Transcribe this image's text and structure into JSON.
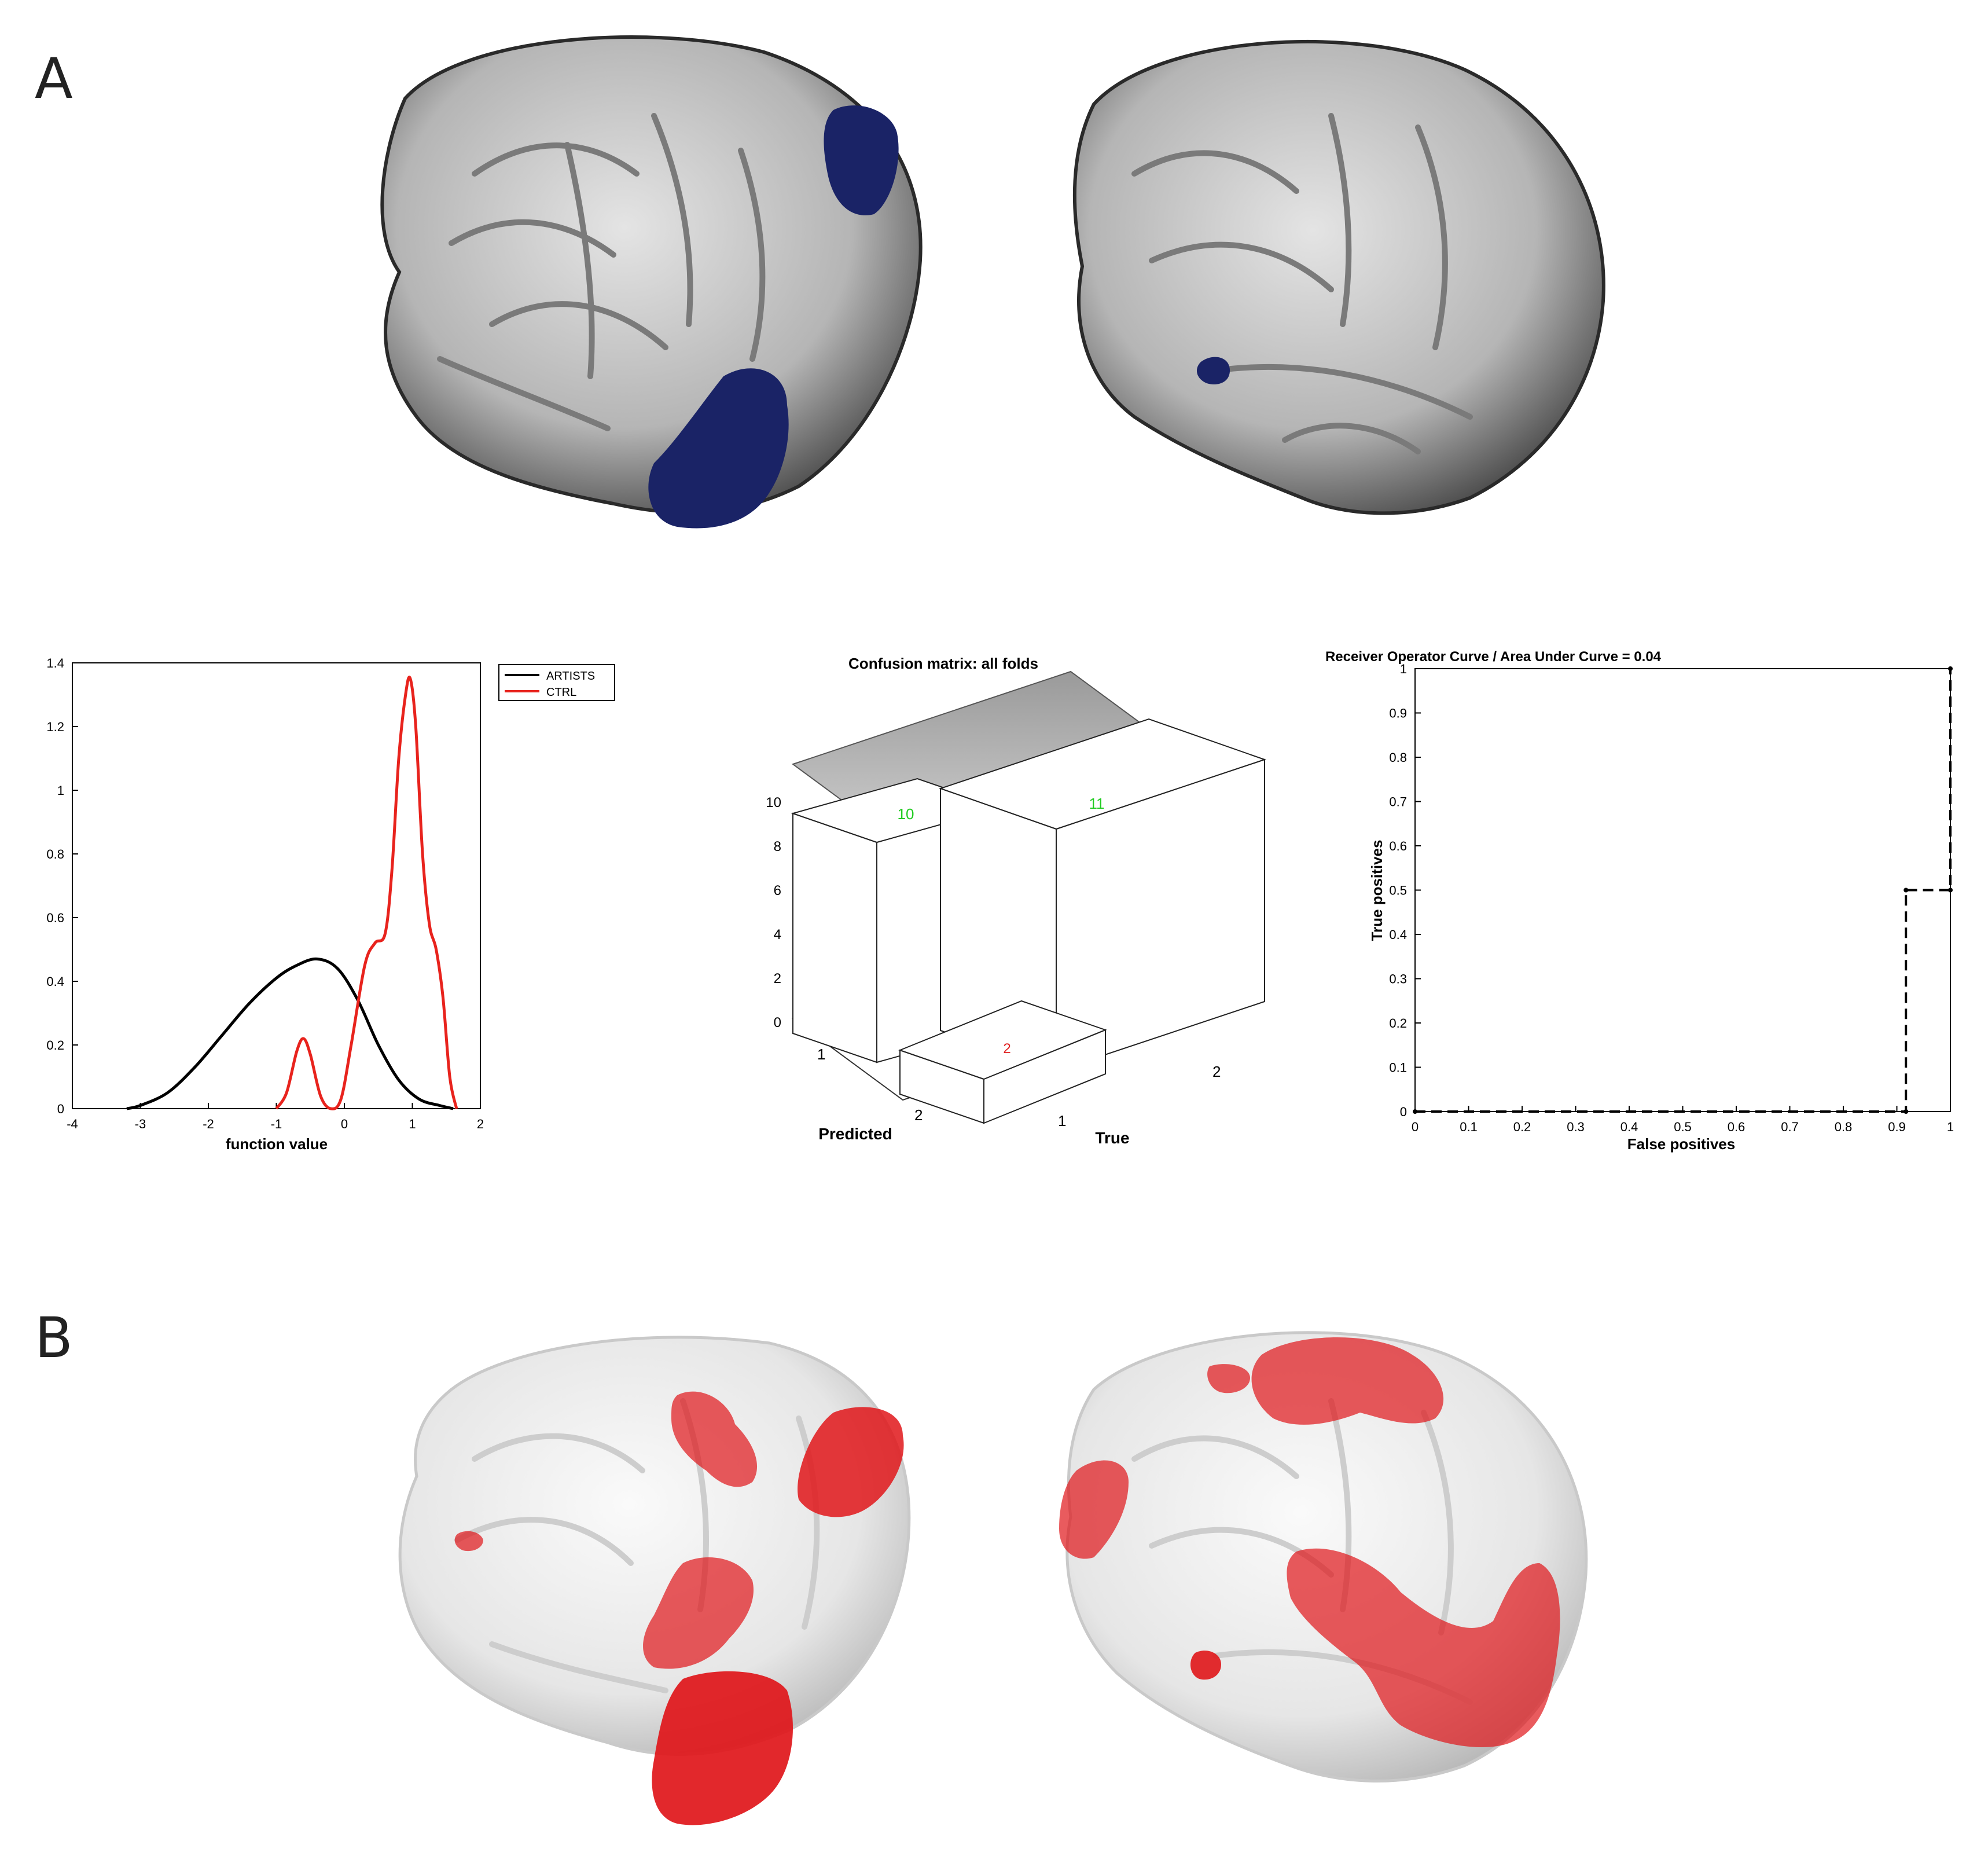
{
  "panels": {
    "a_label": "A",
    "b_label": "B"
  },
  "colors": {
    "brain_surface": "#bdbdbd",
    "cluster_blue": "#1a2366",
    "cluster_red": "#e0161a",
    "artists": "#000000",
    "ctrl": "#e8231d",
    "true_value": "#22cc22",
    "false_value": "#e02020"
  },
  "brain_images": [
    {
      "panel": "A",
      "view": "left-lateral",
      "icon": "brain-surface-icon",
      "cluster_color": "#1a2366"
    },
    {
      "panel": "A",
      "view": "right-lateral",
      "icon": "brain-surface-icon",
      "cluster_color": "#1a2366"
    },
    {
      "panel": "B",
      "view": "left-lateral",
      "icon": "brain-surface-icon",
      "cluster_color": "#e0161a"
    },
    {
      "panel": "B",
      "view": "right-lateral",
      "icon": "brain-surface-icon",
      "cluster_color": "#e0161a"
    }
  ],
  "chart_data": [
    {
      "type": "line",
      "title": "",
      "xlabel": "function value",
      "ylabel": "",
      "xlim": [
        -4,
        2
      ],
      "ylim": [
        0,
        1.4
      ],
      "xticks": [
        -4,
        -3,
        -2,
        -1,
        0,
        1,
        2
      ],
      "yticks": [
        0,
        0.2,
        0.4,
        0.6,
        0.8,
        1,
        1.2,
        1.4
      ],
      "legend_position": "top-right",
      "series": [
        {
          "name": "ARTISTS",
          "color": "#000000",
          "x": [
            -3.2,
            -3.0,
            -2.6,
            -2.2,
            -1.8,
            -1.4,
            -1.0,
            -0.7,
            -0.4,
            -0.1,
            0.2,
            0.5,
            0.8,
            1.1,
            1.4,
            1.6
          ],
          "y": [
            0.0,
            0.01,
            0.05,
            0.13,
            0.23,
            0.33,
            0.41,
            0.45,
            0.47,
            0.44,
            0.34,
            0.2,
            0.09,
            0.03,
            0.01,
            0.0
          ]
        },
        {
          "name": "CTRL",
          "color": "#e8231d",
          "x": [
            -1.0,
            -0.85,
            -0.7,
            -0.6,
            -0.5,
            -0.35,
            -0.2,
            -0.05,
            0.1,
            0.3,
            0.45,
            0.6,
            0.7,
            0.8,
            0.9,
            0.97,
            1.05,
            1.15,
            1.25,
            1.35,
            1.45,
            1.55,
            1.65
          ],
          "y": [
            0.0,
            0.05,
            0.18,
            0.22,
            0.17,
            0.04,
            0.0,
            0.03,
            0.2,
            0.45,
            0.52,
            0.55,
            0.75,
            1.1,
            1.3,
            1.35,
            1.2,
            0.8,
            0.58,
            0.5,
            0.35,
            0.1,
            0.0
          ]
        }
      ]
    },
    {
      "type": "bar",
      "title": "Confusion matrix: all folds",
      "xlabel": "True",
      "ylabel": "Predicted",
      "categories": [
        "1",
        "2"
      ],
      "zticks": [
        0,
        2,
        4,
        6,
        8,
        10
      ],
      "zlim": [
        0,
        10
      ],
      "values": [
        {
          "predicted": "1",
          "true": "1",
          "count": 10,
          "label": "10",
          "label_color": "#22cc22"
        },
        {
          "predicted": "2",
          "true": "1",
          "count": 2,
          "label": "2",
          "label_color": "#e02020"
        },
        {
          "predicted": "1",
          "true": "2",
          "count": 1,
          "label": "",
          "label_color": "#e02020"
        },
        {
          "predicted": "2",
          "true": "2",
          "count": 11,
          "label": "11",
          "label_color": "#22cc22"
        }
      ]
    },
    {
      "type": "line",
      "title": "Receiver Operator Curve / Area Under Curve = 0.04",
      "xlabel": "False positives",
      "ylabel": "True positives",
      "xlim": [
        0,
        1
      ],
      "ylim": [
        0,
        1
      ],
      "xticks": [
        0,
        0.1,
        0.2,
        0.3,
        0.4,
        0.5,
        0.6,
        0.7,
        0.8,
        0.9,
        1
      ],
      "yticks": [
        0,
        0.1,
        0.2,
        0.3,
        0.4,
        0.5,
        0.6,
        0.7,
        0.8,
        0.9,
        1
      ],
      "line_style": "dashed",
      "series": [
        {
          "name": "",
          "color": "#000000",
          "x": [
            0,
            0.917,
            0.917,
            1.0,
            1.0
          ],
          "y": [
            0,
            0,
            0.5,
            0.5,
            1.0
          ]
        }
      ]
    }
  ]
}
